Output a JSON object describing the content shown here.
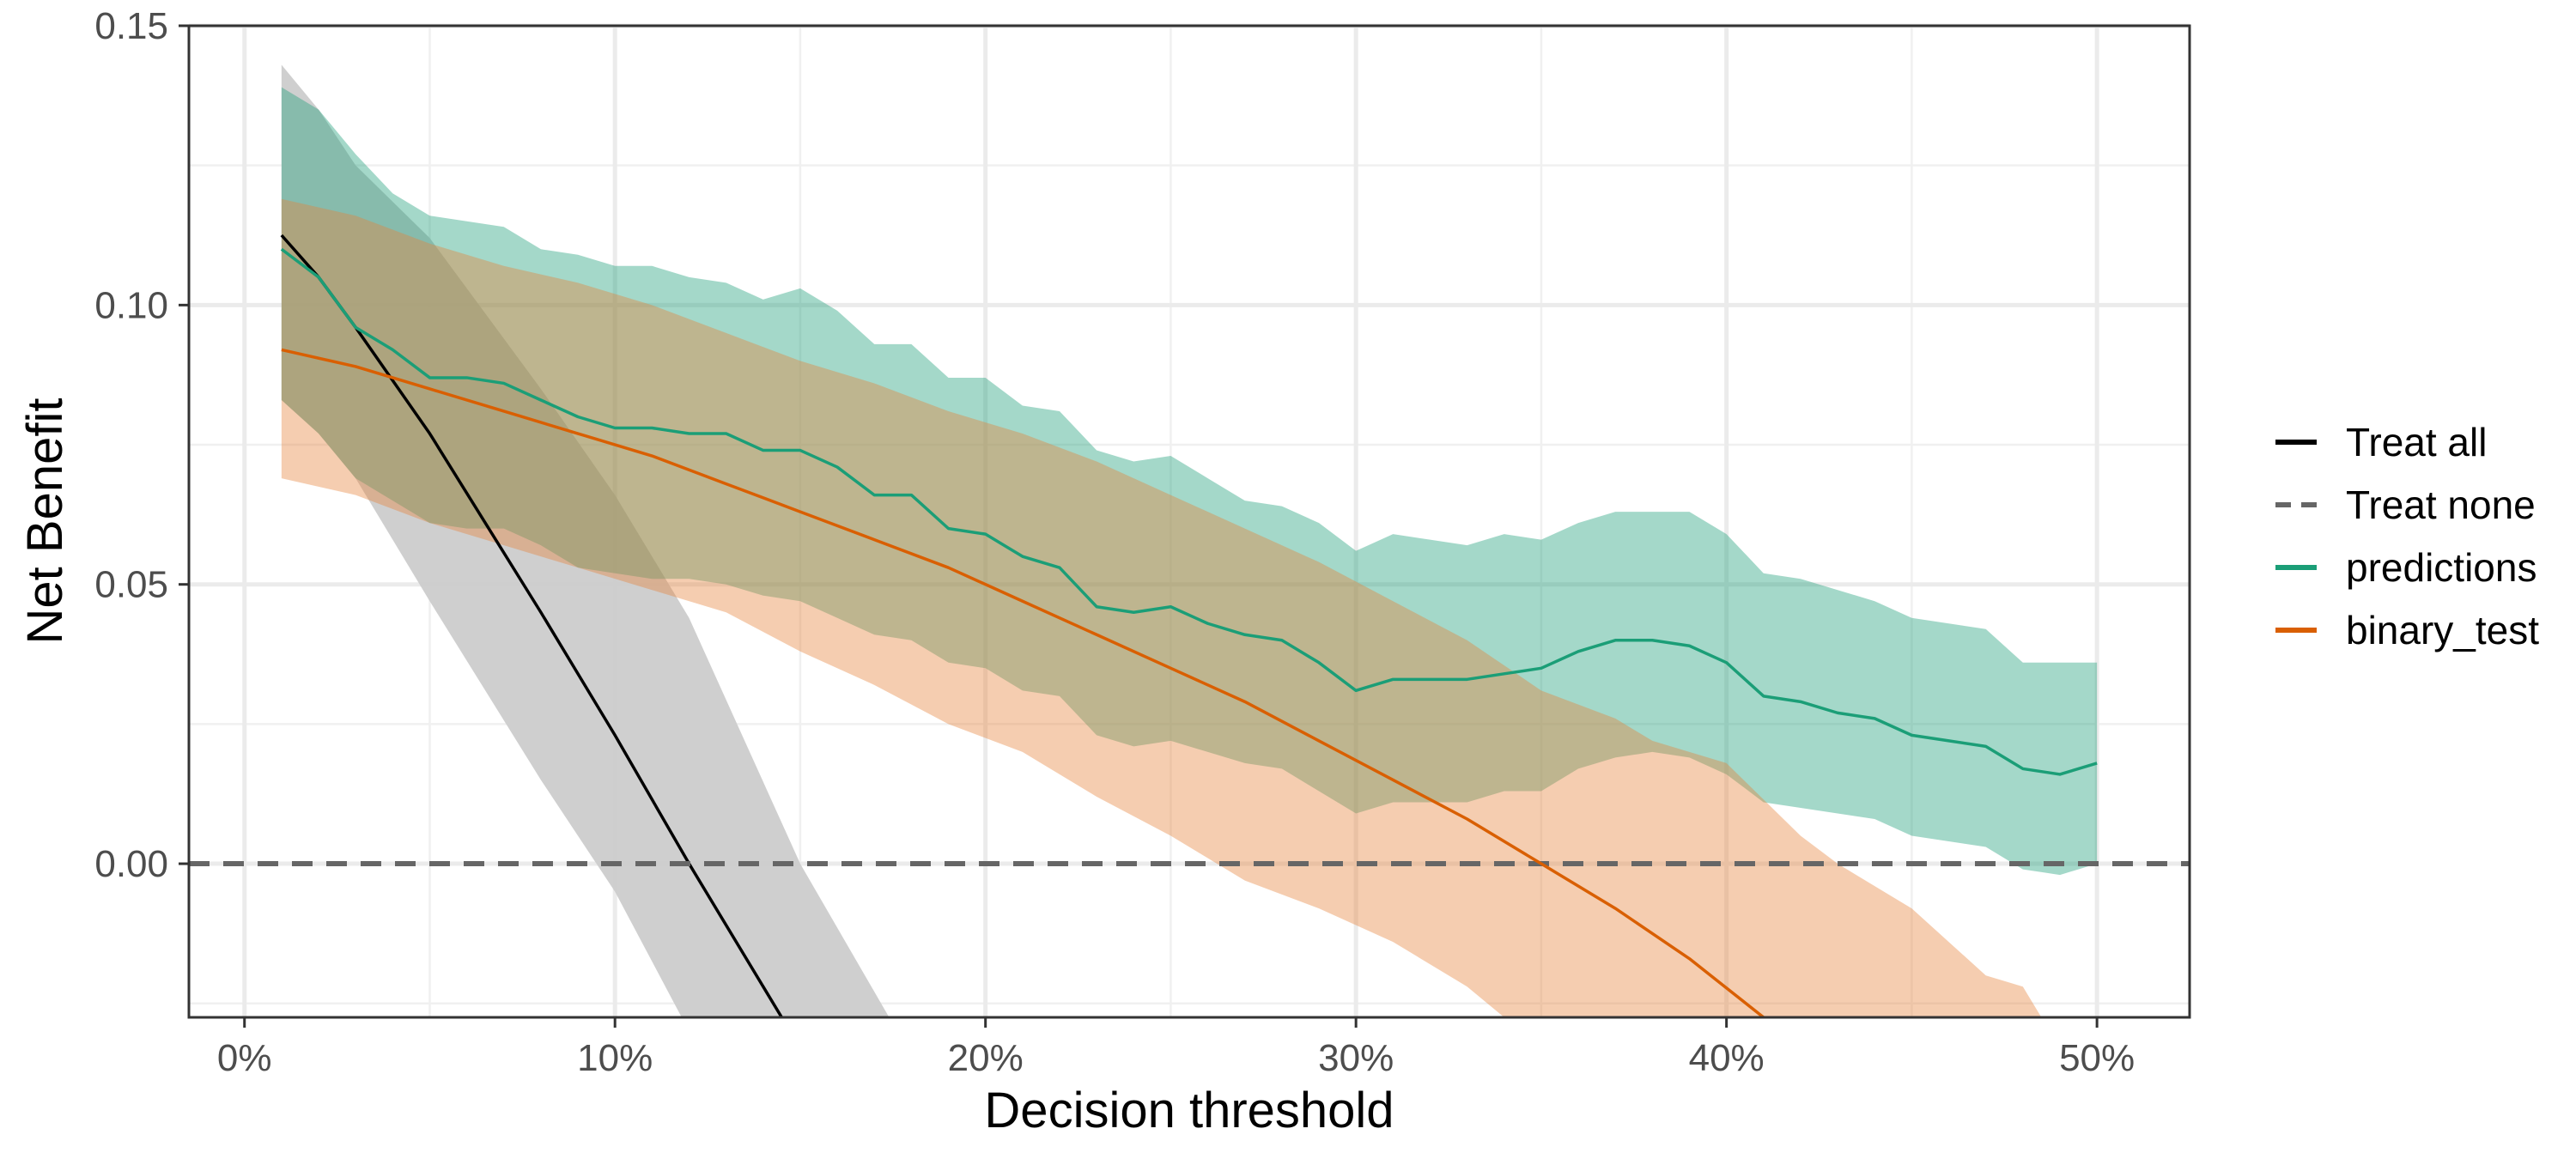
{
  "chart_data": {
    "type": "line",
    "title": "",
    "xlabel": "Decision threshold",
    "ylabel": "Net Benefit",
    "xlim": [
      -0.015,
      0.525
    ],
    "ylim": [
      -0.0275,
      0.15
    ],
    "x_ticks": [
      0,
      0.1,
      0.2,
      0.3,
      0.4,
      0.5
    ],
    "x_tick_labels": [
      "0%",
      "10%",
      "20%",
      "30%",
      "40%",
      "50%"
    ],
    "y_ticks": [
      0,
      0.05,
      0.1,
      0.15
    ],
    "y_tick_labels": [
      "0.00",
      "0.05",
      "0.10",
      "0.15"
    ],
    "grid": true,
    "legend_position": "right",
    "series": [
      {
        "name": "Treat all",
        "color": "#000000",
        "dash": "solid",
        "band_color": "#cccccc",
        "points": [
          [
            0.01,
            0.1125
          ],
          [
            0.02,
            0.105
          ],
          [
            0.03,
            0.096
          ],
          [
            0.05,
            0.077
          ],
          [
            0.08,
            0.045
          ],
          [
            0.1,
            0.023
          ],
          [
            0.12,
            0.0
          ],
          [
            0.145,
            -0.0275
          ]
        ],
        "band_upper": [
          [
            0.01,
            0.143
          ],
          [
            0.02,
            0.135
          ],
          [
            0.03,
            0.125
          ],
          [
            0.05,
            0.112
          ],
          [
            0.08,
            0.085
          ],
          [
            0.1,
            0.066
          ],
          [
            0.12,
            0.044
          ],
          [
            0.15,
            0.0
          ],
          [
            0.174,
            -0.0275
          ]
        ],
        "band_lower": [
          [
            0.01,
            0.083
          ],
          [
            0.02,
            0.077
          ],
          [
            0.03,
            0.069
          ],
          [
            0.05,
            0.047
          ],
          [
            0.08,
            0.015
          ],
          [
            0.1,
            -0.005
          ],
          [
            0.118,
            -0.0275
          ]
        ]
      },
      {
        "name": "Treat none",
        "color": "#666666",
        "dash": "dashed",
        "points": [
          [
            -0.015,
            0
          ],
          [
            0.525,
            0
          ]
        ]
      },
      {
        "name": "predictions",
        "color": "#1b9e77",
        "dash": "solid",
        "band_color": "#1b9e77",
        "points": [
          [
            0.01,
            0.11
          ],
          [
            0.02,
            0.105
          ],
          [
            0.03,
            0.096
          ],
          [
            0.04,
            0.092
          ],
          [
            0.05,
            0.087
          ],
          [
            0.06,
            0.087
          ],
          [
            0.07,
            0.086
          ],
          [
            0.08,
            0.083
          ],
          [
            0.09,
            0.08
          ],
          [
            0.1,
            0.078
          ],
          [
            0.11,
            0.078
          ],
          [
            0.12,
            0.077
          ],
          [
            0.13,
            0.077
          ],
          [
            0.14,
            0.074
          ],
          [
            0.15,
            0.074
          ],
          [
            0.16,
            0.071
          ],
          [
            0.17,
            0.066
          ],
          [
            0.18,
            0.066
          ],
          [
            0.19,
            0.06
          ],
          [
            0.2,
            0.059
          ],
          [
            0.21,
            0.055
          ],
          [
            0.22,
            0.053
          ],
          [
            0.23,
            0.046
          ],
          [
            0.24,
            0.045
          ],
          [
            0.25,
            0.046
          ],
          [
            0.26,
            0.043
          ],
          [
            0.27,
            0.041
          ],
          [
            0.28,
            0.04
          ],
          [
            0.29,
            0.036
          ],
          [
            0.3,
            0.031
          ],
          [
            0.31,
            0.033
          ],
          [
            0.32,
            0.033
          ],
          [
            0.33,
            0.033
          ],
          [
            0.34,
            0.034
          ],
          [
            0.35,
            0.035
          ],
          [
            0.36,
            0.038
          ],
          [
            0.37,
            0.04
          ],
          [
            0.38,
            0.04
          ],
          [
            0.39,
            0.039
          ],
          [
            0.4,
            0.036
          ],
          [
            0.41,
            0.03
          ],
          [
            0.42,
            0.029
          ],
          [
            0.43,
            0.027
          ],
          [
            0.44,
            0.026
          ],
          [
            0.45,
            0.023
          ],
          [
            0.46,
            0.022
          ],
          [
            0.47,
            0.021
          ],
          [
            0.48,
            0.017
          ],
          [
            0.49,
            0.016
          ],
          [
            0.5,
            0.018
          ]
        ],
        "band_upper": [
          [
            0.01,
            0.139
          ],
          [
            0.02,
            0.135
          ],
          [
            0.03,
            0.127
          ],
          [
            0.04,
            0.12
          ],
          [
            0.05,
            0.116
          ],
          [
            0.06,
            0.115
          ],
          [
            0.07,
            0.114
          ],
          [
            0.08,
            0.11
          ],
          [
            0.09,
            0.109
          ],
          [
            0.1,
            0.107
          ],
          [
            0.11,
            0.107
          ],
          [
            0.12,
            0.105
          ],
          [
            0.13,
            0.104
          ],
          [
            0.14,
            0.101
          ],
          [
            0.15,
            0.103
          ],
          [
            0.16,
            0.099
          ],
          [
            0.17,
            0.093
          ],
          [
            0.18,
            0.093
          ],
          [
            0.19,
            0.087
          ],
          [
            0.2,
            0.087
          ],
          [
            0.21,
            0.082
          ],
          [
            0.22,
            0.081
          ],
          [
            0.23,
            0.074
          ],
          [
            0.24,
            0.072
          ],
          [
            0.25,
            0.073
          ],
          [
            0.26,
            0.069
          ],
          [
            0.27,
            0.065
          ],
          [
            0.28,
            0.064
          ],
          [
            0.29,
            0.061
          ],
          [
            0.3,
            0.056
          ],
          [
            0.31,
            0.059
          ],
          [
            0.32,
            0.058
          ],
          [
            0.33,
            0.057
          ],
          [
            0.34,
            0.059
          ],
          [
            0.35,
            0.058
          ],
          [
            0.36,
            0.061
          ],
          [
            0.37,
            0.063
          ],
          [
            0.38,
            0.063
          ],
          [
            0.39,
            0.063
          ],
          [
            0.4,
            0.059
          ],
          [
            0.41,
            0.052
          ],
          [
            0.42,
            0.051
          ],
          [
            0.43,
            0.049
          ],
          [
            0.44,
            0.047
          ],
          [
            0.45,
            0.044
          ],
          [
            0.46,
            0.043
          ],
          [
            0.47,
            0.042
          ],
          [
            0.48,
            0.036
          ],
          [
            0.49,
            0.036
          ],
          [
            0.5,
            0.036
          ]
        ],
        "band_lower": [
          [
            0.01,
            0.083
          ],
          [
            0.02,
            0.077
          ],
          [
            0.03,
            0.069
          ],
          [
            0.04,
            0.065
          ],
          [
            0.05,
            0.061
          ],
          [
            0.06,
            0.06
          ],
          [
            0.07,
            0.06
          ],
          [
            0.08,
            0.057
          ],
          [
            0.09,
            0.053
          ],
          [
            0.1,
            0.052
          ],
          [
            0.11,
            0.051
          ],
          [
            0.12,
            0.051
          ],
          [
            0.13,
            0.05
          ],
          [
            0.14,
            0.048
          ],
          [
            0.15,
            0.047
          ],
          [
            0.16,
            0.044
          ],
          [
            0.17,
            0.041
          ],
          [
            0.18,
            0.04
          ],
          [
            0.19,
            0.036
          ],
          [
            0.2,
            0.035
          ],
          [
            0.21,
            0.031
          ],
          [
            0.22,
            0.03
          ],
          [
            0.23,
            0.023
          ],
          [
            0.24,
            0.021
          ],
          [
            0.25,
            0.022
          ],
          [
            0.26,
            0.02
          ],
          [
            0.27,
            0.018
          ],
          [
            0.28,
            0.017
          ],
          [
            0.29,
            0.013
          ],
          [
            0.3,
            0.009
          ],
          [
            0.31,
            0.011
          ],
          [
            0.32,
            0.011
          ],
          [
            0.33,
            0.011
          ],
          [
            0.34,
            0.013
          ],
          [
            0.35,
            0.013
          ],
          [
            0.36,
            0.017
          ],
          [
            0.37,
            0.019
          ],
          [
            0.38,
            0.02
          ],
          [
            0.39,
            0.019
          ],
          [
            0.4,
            0.016
          ],
          [
            0.41,
            0.011
          ],
          [
            0.42,
            0.01
          ],
          [
            0.43,
            0.009
          ],
          [
            0.44,
            0.008
          ],
          [
            0.45,
            0.005
          ],
          [
            0.46,
            0.004
          ],
          [
            0.47,
            0.003
          ],
          [
            0.48,
            -0.001
          ],
          [
            0.49,
            -0.002
          ],
          [
            0.5,
            0.0
          ]
        ]
      },
      {
        "name": "binary_test",
        "color": "#d95f02",
        "dash": "solid",
        "band_color": "#e7823a",
        "points": [
          [
            0.01,
            0.092
          ],
          [
            0.03,
            0.089
          ],
          [
            0.05,
            0.085
          ],
          [
            0.07,
            0.081
          ],
          [
            0.09,
            0.077
          ],
          [
            0.11,
            0.073
          ],
          [
            0.13,
            0.068
          ],
          [
            0.15,
            0.063
          ],
          [
            0.17,
            0.058
          ],
          [
            0.19,
            0.053
          ],
          [
            0.21,
            0.047
          ],
          [
            0.23,
            0.041
          ],
          [
            0.25,
            0.035
          ],
          [
            0.27,
            0.029
          ],
          [
            0.29,
            0.022
          ],
          [
            0.31,
            0.015
          ],
          [
            0.33,
            0.008
          ],
          [
            0.35,
            0.0
          ],
          [
            0.37,
            -0.008
          ],
          [
            0.39,
            -0.017
          ],
          [
            0.41,
            -0.0275
          ]
        ],
        "band_upper": [
          [
            0.01,
            0.119
          ],
          [
            0.03,
            0.116
          ],
          [
            0.05,
            0.111
          ],
          [
            0.07,
            0.107
          ],
          [
            0.09,
            0.104
          ],
          [
            0.11,
            0.1
          ],
          [
            0.13,
            0.095
          ],
          [
            0.15,
            0.09
          ],
          [
            0.17,
            0.086
          ],
          [
            0.19,
            0.081
          ],
          [
            0.21,
            0.077
          ],
          [
            0.23,
            0.072
          ],
          [
            0.25,
            0.066
          ],
          [
            0.27,
            0.06
          ],
          [
            0.29,
            0.054
          ],
          [
            0.31,
            0.047
          ],
          [
            0.33,
            0.04
          ],
          [
            0.35,
            0.031
          ],
          [
            0.37,
            0.026
          ],
          [
            0.38,
            0.022
          ],
          [
            0.4,
            0.018
          ],
          [
            0.42,
            0.005
          ],
          [
            0.43,
            0.0
          ],
          [
            0.45,
            -0.008
          ],
          [
            0.47,
            -0.02
          ],
          [
            0.48,
            -0.022
          ],
          [
            0.485,
            -0.0275
          ]
        ],
        "band_lower": [
          [
            0.01,
            0.069
          ],
          [
            0.03,
            0.066
          ],
          [
            0.05,
            0.061
          ],
          [
            0.07,
            0.057
          ],
          [
            0.09,
            0.053
          ],
          [
            0.11,
            0.049
          ],
          [
            0.13,
            0.045
          ],
          [
            0.15,
            0.038
          ],
          [
            0.17,
            0.032
          ],
          [
            0.19,
            0.025
          ],
          [
            0.21,
            0.02
          ],
          [
            0.23,
            0.012
          ],
          [
            0.25,
            0.005
          ],
          [
            0.27,
            -0.003
          ],
          [
            0.29,
            -0.008
          ],
          [
            0.31,
            -0.014
          ],
          [
            0.33,
            -0.022
          ],
          [
            0.34,
            -0.0275
          ]
        ]
      }
    ]
  }
}
